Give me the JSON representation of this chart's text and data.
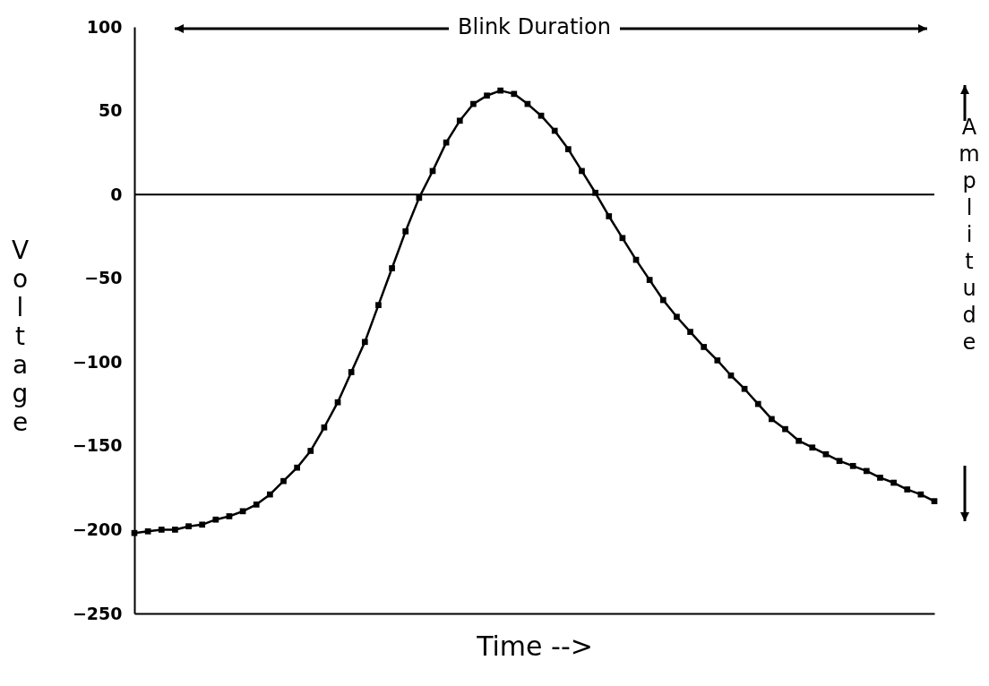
{
  "chart_data": {
    "type": "line",
    "xlabel": "Time -->",
    "ylabel": "Voltage",
    "annotations": [
      "Blink Duration",
      "Amplitude"
    ],
    "categories": [
      null,
      null,
      null,
      null,
      null,
      null,
      null,
      null,
      null,
      null,
      null,
      null,
      null,
      null,
      null,
      null,
      null,
      null,
      null,
      null,
      null,
      null,
      null,
      null,
      null,
      null,
      null,
      null,
      null,
      null,
      null,
      null,
      null,
      null,
      null,
      null,
      null,
      null,
      null,
      null,
      null,
      null,
      null,
      null,
      null,
      null,
      null,
      null,
      null,
      null,
      null,
      null,
      null,
      null,
      null,
      null,
      null,
      null,
      null,
      null
    ],
    "series": [
      {
        "color": "#000000",
        "values": [
          -202,
          -201,
          -200,
          -200,
          -198,
          -197,
          -194,
          -192,
          -189,
          -185,
          -179,
          -171,
          -163,
          -153,
          -139,
          -124,
          -106,
          -88,
          -66,
          -44,
          -22,
          -2,
          14,
          31,
          44,
          54,
          59,
          62,
          60,
          54,
          47,
          38,
          27,
          14,
          1,
          -13,
          -26,
          -39,
          -51,
          -63,
          -73,
          -82,
          -91,
          -99,
          -108,
          -116,
          -125,
          -134,
          -140,
          -147,
          -151,
          -155,
          -159,
          -162,
          -165,
          -169,
          -172,
          -176,
          -179,
          -183
        ]
      }
    ],
    "ylim": [
      -250,
      100
    ],
    "yticks": [
      -250,
      -200,
      -150,
      -100,
      -50,
      0,
      50,
      100
    ],
    "ref_lines": [
      {
        "axis": "y",
        "value": 0,
        "color": "#000000"
      }
    ],
    "marker": "square",
    "line_style": "solid",
    "grid": false,
    "legend": false
  }
}
